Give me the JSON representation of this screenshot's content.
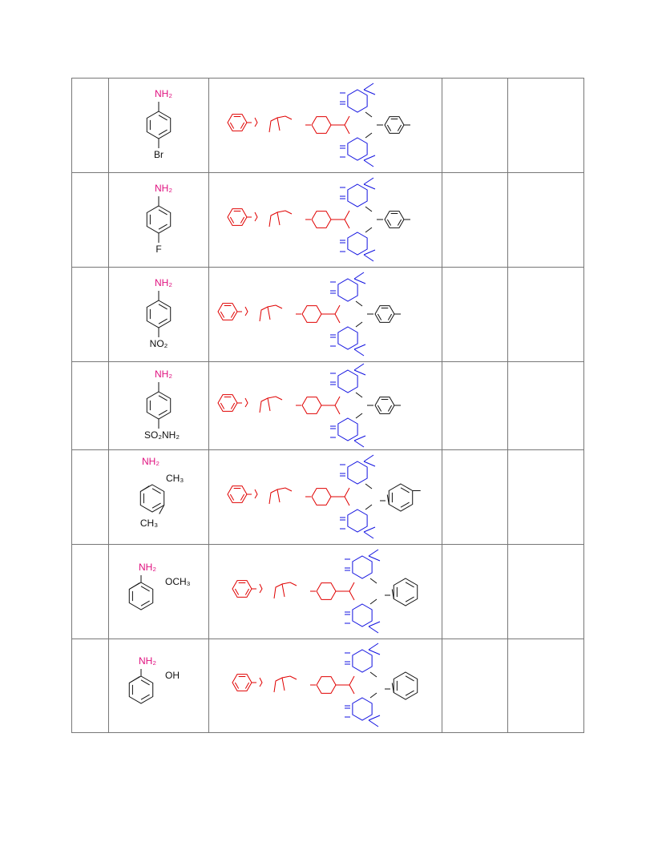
{
  "table": {
    "rows": [
      {
        "reactant": {
          "top": "NH₂",
          "bottom": "Br"
        }
      },
      {
        "reactant": {
          "top": "NH₂",
          "bottom": "F"
        }
      },
      {
        "reactant": {
          "top": "NH₂",
          "bottom": "NO₂"
        }
      },
      {
        "reactant": {
          "top": "NH₂",
          "bottom": "SO₂NH₂"
        }
      },
      {
        "reactant": {
          "top": "NH₂",
          "side": "CH₃",
          "bottom": "CH₃"
        }
      },
      {
        "reactant": {
          "top": "NH₂",
          "side": "OCH₃"
        }
      },
      {
        "reactant": {
          "top": "NH₂",
          "side": "OH"
        }
      }
    ]
  }
}
